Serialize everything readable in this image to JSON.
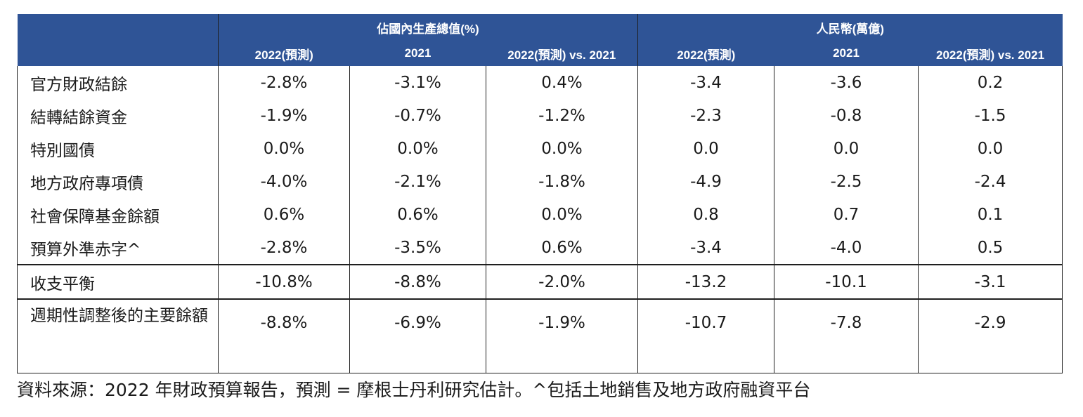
{
  "header": {
    "group_gdp": "佔國內生產總值(%)",
    "group_rmb": "人民幣(萬億)",
    "cols": [
      "2022(預測)",
      "2021",
      "2022(預測) vs. 2021",
      "2022(預測)",
      "2021",
      "2022(預測) vs. 2021"
    ]
  },
  "rows": [
    {
      "label": "官方財政結餘",
      "values": [
        "-2.8%",
        "-3.1%",
        "0.4%",
        "-3.4",
        "-3.6",
        "0.2"
      ]
    },
    {
      "label": "結轉結餘資金",
      "values": [
        "-1.9%",
        "-0.7%",
        "-1.2%",
        "-2.3",
        "-0.8",
        "-1.5"
      ]
    },
    {
      "label": "特別國債",
      "values": [
        "0.0%",
        "0.0%",
        "0.0%",
        "0.0",
        "0.0",
        "0.0"
      ]
    },
    {
      "label": "地方政府專項債",
      "values": [
        "-4.0%",
        "-2.1%",
        "-1.8%",
        "-4.9",
        "-2.5",
        "-2.4"
      ]
    },
    {
      "label": "社會保障基金餘額",
      "values": [
        "0.6%",
        "0.6%",
        "0.0%",
        "0.8",
        "0.7",
        "0.1"
      ]
    },
    {
      "label": "預算外準赤字^",
      "values": [
        "-2.8%",
        "-3.5%",
        "0.6%",
        "-3.4",
        "-4.0",
        "0.5"
      ]
    },
    {
      "label": "收支平衡",
      "values": [
        "-10.8%",
        "-8.8%",
        "-2.0%",
        "-13.2",
        "-10.1",
        "-3.1"
      ]
    },
    {
      "label": "週期性調整後的主要餘額",
      "values": [
        "-8.8%",
        "-6.9%",
        "-1.9%",
        "-10.7",
        "-7.8",
        "-2.9"
      ]
    }
  ],
  "footnote": "資料來源：2022 年財政預算報告，預測 = 摩根士丹利研究估計。^包括土地銷售及地方政府融資平台"
}
